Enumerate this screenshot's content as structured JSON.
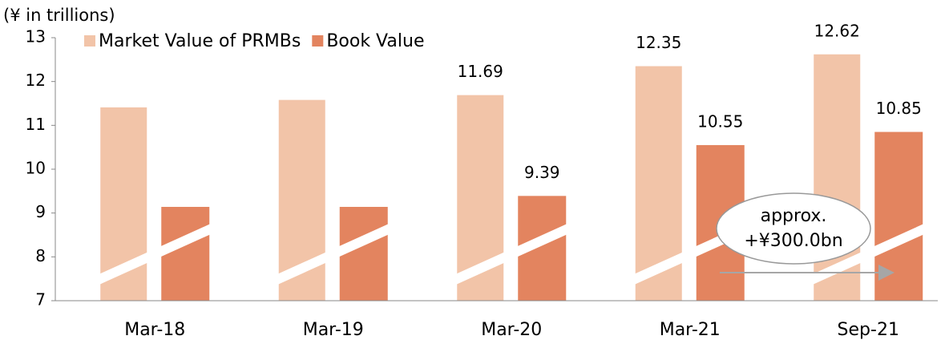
{
  "chart_data": {
    "type": "bar",
    "y_axis_label": "(¥ in trillions)",
    "categories": [
      "Mar-18",
      "Mar-19",
      "Mar-20",
      "Mar-21",
      "Sep-21"
    ],
    "series": [
      {
        "name": "Market Value of PRMBs",
        "color": "#f2c4a8",
        "values": [
          11.41,
          11.58,
          11.69,
          12.35,
          12.62
        ],
        "value_labels": [
          null,
          null,
          "11.69",
          "12.35",
          "12.62"
        ]
      },
      {
        "name": "Book Value",
        "color": "#e3845f",
        "values": [
          9.14,
          9.14,
          9.39,
          10.55,
          10.85
        ],
        "value_labels": [
          null,
          null,
          "9.39",
          "10.55",
          "10.85"
        ]
      }
    ],
    "ylim": [
      7,
      13
    ],
    "yticks": [
      7,
      8,
      9,
      10,
      11,
      12,
      13
    ],
    "legend": "top-left",
    "annotation": [
      "approx.",
      "+¥300.0bn"
    ]
  }
}
